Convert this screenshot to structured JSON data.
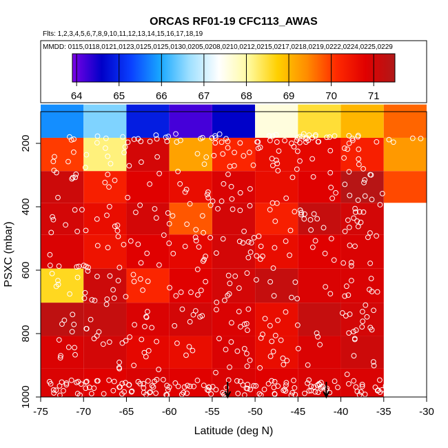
{
  "chart_data": {
    "type": "heatmap",
    "title": "ORCAS RF01-19 CFC113_AWAS",
    "flights_text": "Flts: 1,2,3,4,5,6,7,8,9,10,11,12,13,14,15,16,17,18,19",
    "dates_text": "MMDD: 0115,0118,0121,0123,0125,0125,0130,0205,0208,0210,0212,0215,0217,0218,0219,0222,0224,0225,0229",
    "xlabel": "Latitude (deg N)",
    "ylabel": "PSXC (mbar)",
    "xlim": [
      -75,
      -30
    ],
    "ylim": [
      1000,
      100
    ],
    "x_ticks": [
      -75,
      -70,
      -65,
      -60,
      -55,
      -50,
      -45,
      -40,
      -35,
      -30
    ],
    "y_ticks": [
      200,
      400,
      600,
      800,
      1000
    ],
    "colorbar": {
      "min": 63.9,
      "max": 71.5,
      "ticks": [
        64,
        65,
        66,
        67,
        68,
        69,
        70,
        71
      ],
      "colors": [
        "#7a00e6",
        "#0000c8",
        "#0a40ff",
        "#18a8ff",
        "#9fe0ff",
        "#ffffff",
        "#fffaa0",
        "#ffd000",
        "#ff8c00",
        "#ff2a00",
        "#e00000",
        "#b01818"
      ]
    },
    "lat_bins": [
      -75,
      -70,
      -65,
      -60,
      -55,
      -50,
      -45,
      -40,
      -35
    ],
    "pressure_bins": [
      100,
      150,
      200,
      250,
      300,
      350,
      400,
      450,
      500,
      550,
      600,
      650,
      700,
      750,
      800,
      850,
      900,
      950,
      1000
    ],
    "pressure_centers": [
      130,
      235,
      340,
      435,
      540,
      650,
      755,
      860,
      960
    ],
    "grid_values": [
      [
        65.8,
        66.5,
        64.9,
        64.2,
        64.6,
        67.6,
        68.5,
        69.0,
        69.7
      ],
      [
        70.0,
        68.2,
        71.0,
        69.2,
        70.2,
        70.6,
        70.7,
        70.3,
        69.3
      ],
      [
        71.1,
        70.3,
        70.8,
        70.6,
        70.9,
        70.6,
        70.8,
        71.4,
        69.9
      ],
      [
        71.0,
        70.6,
        71.0,
        69.8,
        71.0,
        70.3,
        71.2,
        71.0,
        null
      ],
      [
        70.9,
        70.5,
        70.8,
        70.7,
        71.0,
        70.6,
        70.8,
        70.9,
        null
      ],
      [
        68.6,
        71.1,
        70.2,
        70.8,
        71.0,
        71.2,
        70.9,
        70.9,
        null
      ],
      [
        71.3,
        71.2,
        70.9,
        71.0,
        70.9,
        70.6,
        71.2,
        71.0,
        null
      ],
      [
        70.9,
        71.0,
        70.7,
        70.6,
        70.9,
        70.6,
        70.9,
        71.1,
        null
      ],
      [
        70.9,
        70.8,
        70.9,
        70.8,
        70.9,
        70.8,
        70.9,
        70.9,
        null
      ]
    ],
    "arrows": [
      {
        "lat": -53.2
      },
      {
        "lat": -41.7
      }
    ]
  }
}
